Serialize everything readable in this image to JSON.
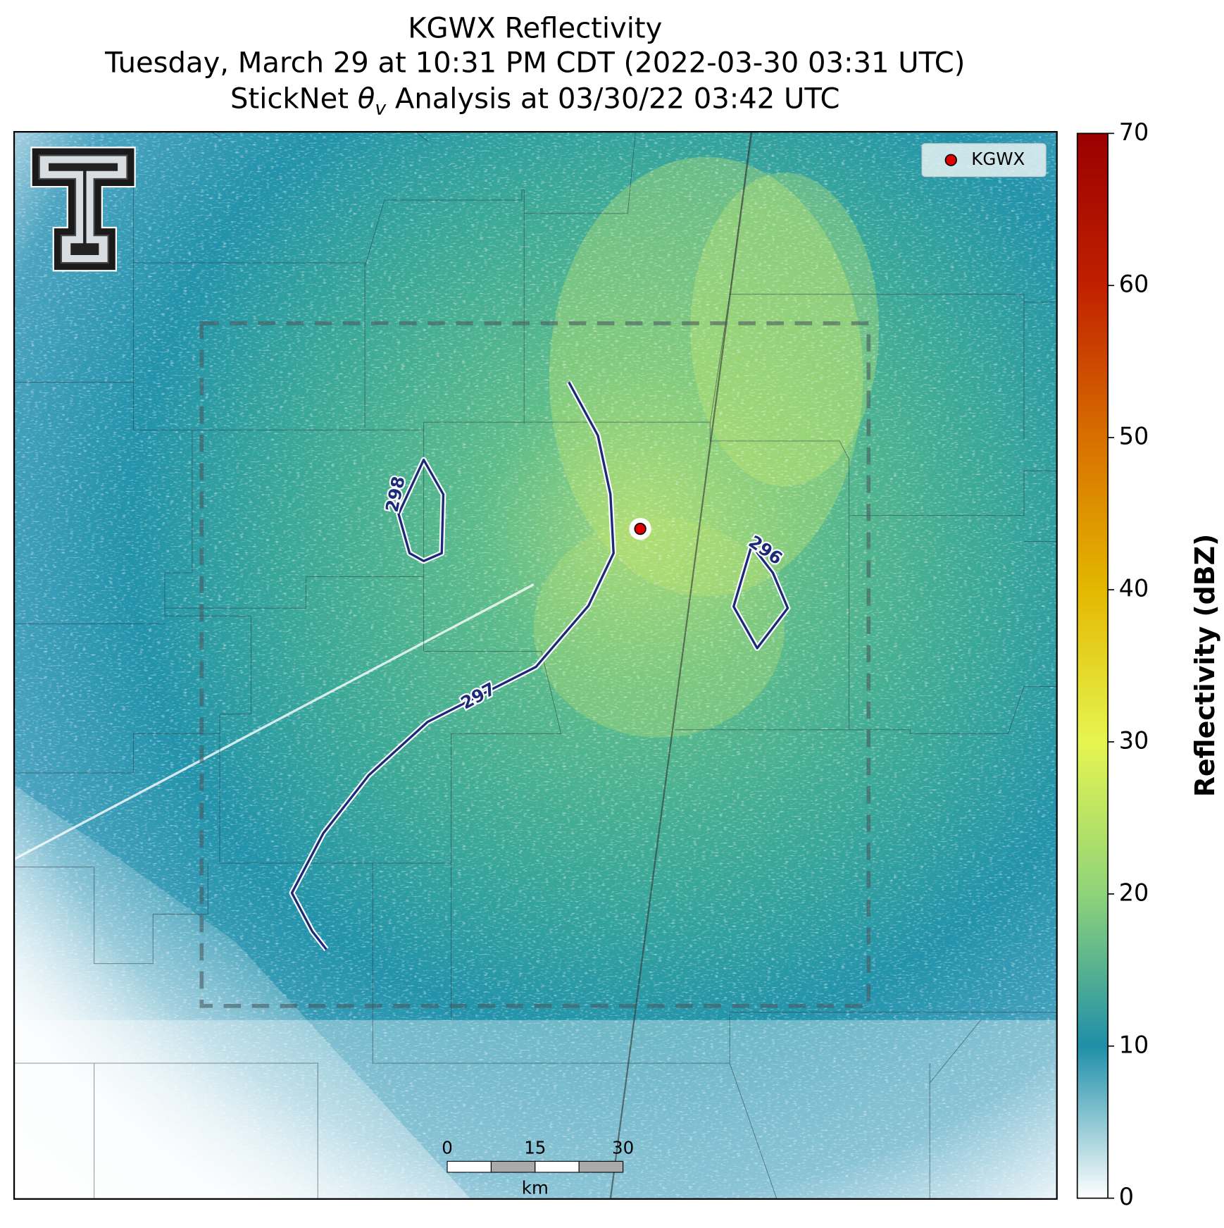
{
  "title": {
    "line1": "KGWX Reflectivity",
    "line2": "Tuesday, March 29 at 10:31 PM CDT (2022-03-30 03:31 UTC)",
    "line3": {
      "prefix": "StickNet ",
      "symbol": "θ",
      "subscript": "v",
      "suffix": " Analysis at 03/30/22 03:42 UTC"
    }
  },
  "legend": {
    "label": "KGWX",
    "color": "#e00000"
  },
  "contour_labels": [
    "298",
    "297",
    "296"
  ],
  "scale_bar": {
    "ticks": [
      0,
      15,
      30
    ],
    "unit": "km"
  },
  "colorbar": {
    "label": "Reflectivity (dBZ)",
    "lim": [
      0,
      70
    ],
    "ticks": [
      0,
      10,
      20,
      30,
      40,
      50,
      60,
      70
    ],
    "colors": [
      "#ffffff",
      "#1f8fa8",
      "#8fd37a",
      "#e6f550",
      "#e3b800",
      "#d86f00",
      "#c02000",
      "#9a0000"
    ]
  }
}
